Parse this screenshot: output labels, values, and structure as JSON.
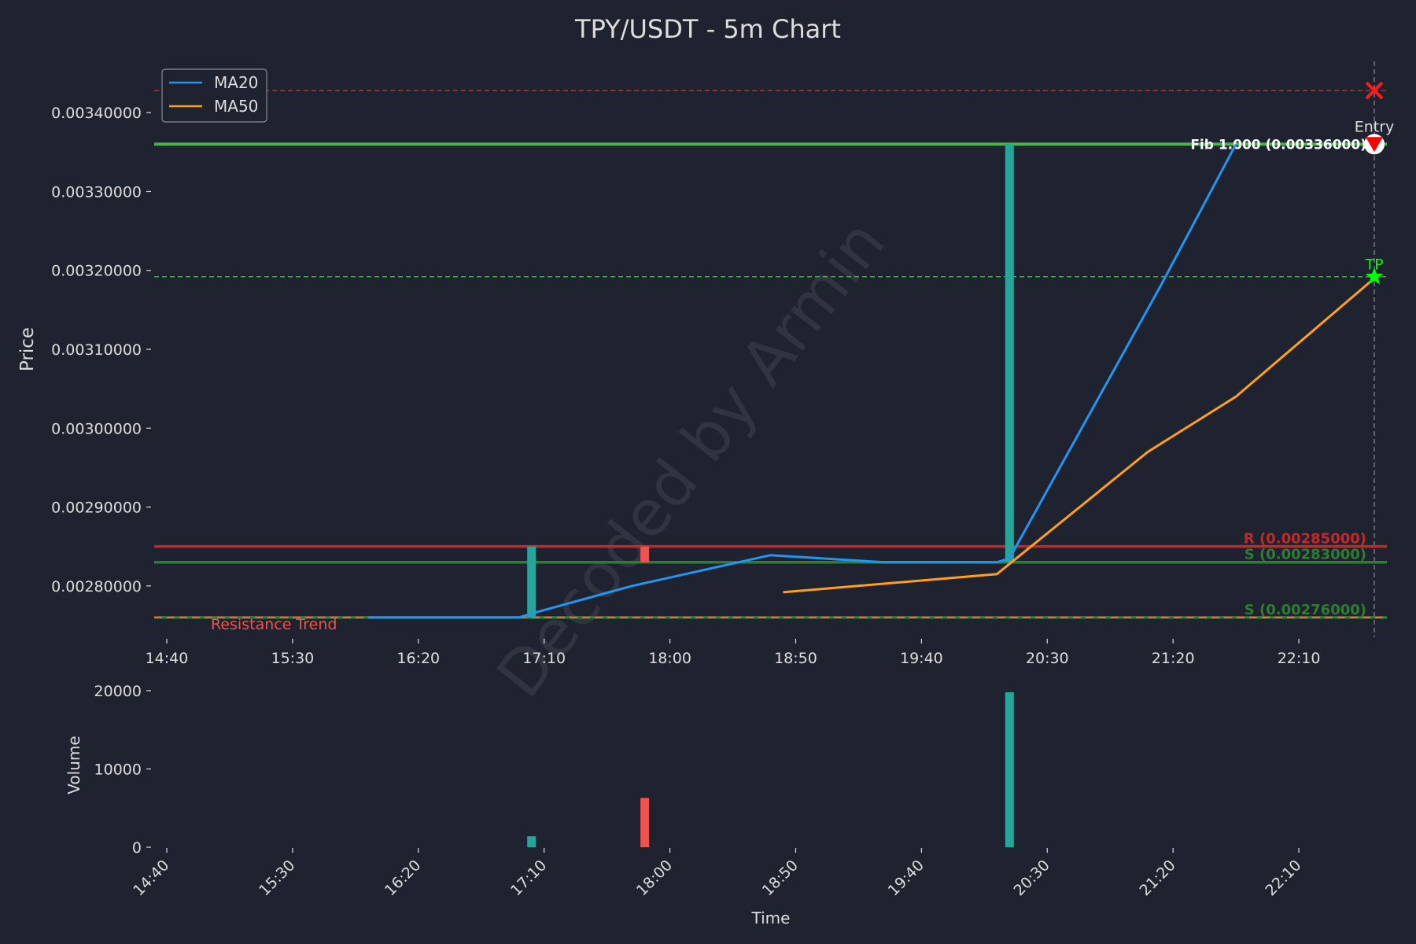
{
  "colors": {
    "background": "#1f2330",
    "text": "#dddddd",
    "bull": "#26a69a",
    "bear": "#ef5350",
    "ma20": "#2196f3",
    "ma50": "#ff9f1a",
    "resistance": "#c62828",
    "support": "#2e7d32",
    "fib": "#4caf50",
    "stop": "#ff1a1a",
    "tp": "#00ff00",
    "trend": "#e0703a",
    "watermark": "#3a3f4b"
  },
  "title": "TPY/USDT - 5m Chart",
  "watermark": "Decoded by Armin",
  "legend": {
    "ma20": "MA20",
    "ma50": "MA50"
  },
  "chart_data": [
    {
      "type": "candlestick",
      "title": "TPY/USDT - 5m Chart",
      "xlabel": "",
      "ylabel": "Price",
      "xlim": [
        "14:35",
        "22:45"
      ],
      "ylim": [
        0.002735,
        0.003465
      ],
      "yticks": [
        "0.00280000",
        "0.00290000",
        "0.00300000",
        "0.00310000",
        "0.00320000",
        "0.00330000",
        "0.00340000"
      ],
      "ytick_values": [
        0.0028,
        0.0029,
        0.003,
        0.0031,
        0.0032,
        0.0033,
        0.0034
      ],
      "xticks": [
        "14:40",
        "15:30",
        "16:20",
        "17:10",
        "18:00",
        "18:50",
        "19:40",
        "20:30",
        "21:20",
        "22:10"
      ],
      "grid": false,
      "legend_position": "top-left",
      "candles": [
        {
          "time": "17:05",
          "open": 0.00276,
          "high": 0.00285,
          "low": 0.00276,
          "close": 0.00285
        },
        {
          "time": "17:50",
          "open": 0.00285,
          "high": 0.00285,
          "low": 0.00283,
          "close": 0.00283
        },
        {
          "time": "20:15",
          "open": 0.00283,
          "high": 0.00336,
          "low": 0.00283,
          "close": 0.00336
        }
      ],
      "series": [
        {
          "name": "MA20",
          "x": [
            "16:00",
            "17:00",
            "17:05",
            "17:45",
            "18:40",
            "19:25",
            "20:10",
            "20:15",
            "21:15",
            "21:45"
          ],
          "y": [
            0.00276,
            0.00276,
            0.002765,
            0.0028,
            0.002839,
            0.00283,
            0.00283,
            0.002835,
            0.00318,
            0.00336
          ]
        },
        {
          "name": "MA50",
          "x": [
            "18:45",
            "20:10",
            "21:10",
            "21:45",
            "22:40"
          ],
          "y": [
            0.002792,
            0.002815,
            0.00297,
            0.00304,
            0.00319
          ]
        }
      ],
      "levels": [
        {
          "label": "R (0.00285000)",
          "value": 0.00285,
          "kind": "resistance"
        },
        {
          "label": "S (0.00283000)",
          "value": 0.00283,
          "kind": "support"
        },
        {
          "label": "S (0.00276000)",
          "value": 0.00276,
          "kind": "support"
        },
        {
          "label": "Fib 1.000 (0.00336000)",
          "value": 0.00336,
          "kind": "fib"
        }
      ],
      "stop_loss": 0.003428,
      "take_profit": 0.003192,
      "entry": {
        "time": "22:40",
        "price": 0.00336,
        "label": "Entry"
      },
      "tp_label": "TP",
      "resistance_trend": {
        "label": "Resistance Trend",
        "value": 0.00276
      }
    },
    {
      "type": "bar",
      "xlabel": "Time",
      "ylabel": "Volume",
      "ylim": [
        0,
        21000
      ],
      "yticks": [
        "0",
        "10000",
        "20000"
      ],
      "ytick_values": [
        0,
        10000,
        20000
      ],
      "xticks": [
        "14:40",
        "15:30",
        "16:20",
        "17:10",
        "18:00",
        "18:50",
        "19:40",
        "20:30",
        "21:20",
        "22:10"
      ],
      "bars": [
        {
          "time": "17:05",
          "value": 1400,
          "dir": "up"
        },
        {
          "time": "17:50",
          "value": 6300,
          "dir": "down"
        },
        {
          "time": "20:15",
          "value": 19800,
          "dir": "up"
        }
      ]
    }
  ]
}
